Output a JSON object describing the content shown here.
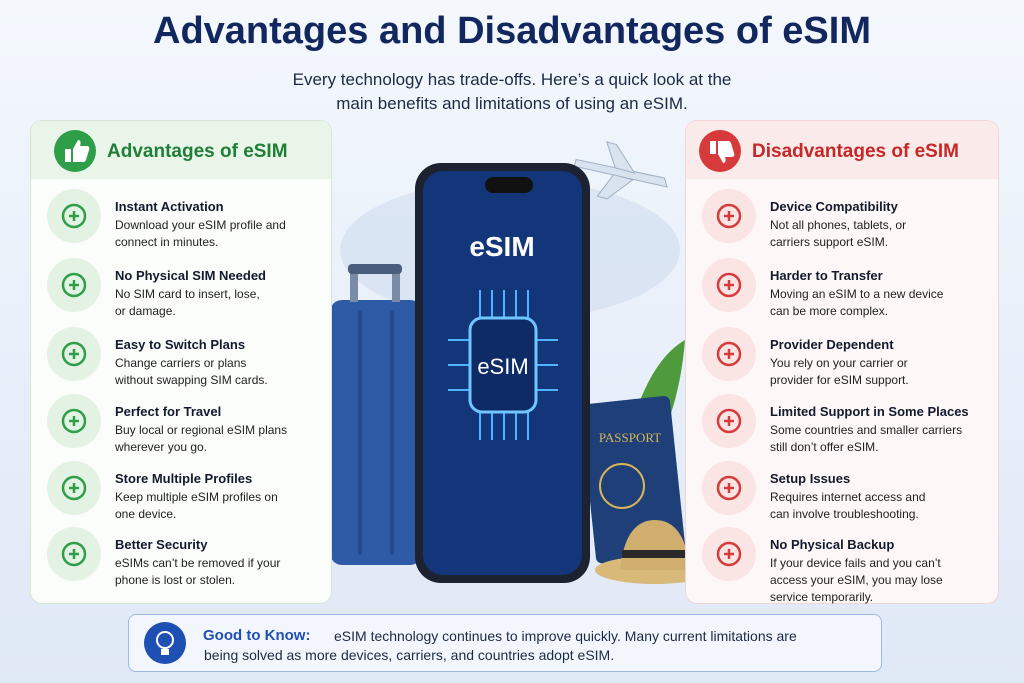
{
  "header": {
    "title": "Advantages and Disadvantages of eSIM",
    "subtitle_lines": [
      "Every technology has trade-offs. Here’s a quick look at the",
      "main benefits and limitations of using an eSIM."
    ]
  },
  "advantages": {
    "heading": "Advantages of eSIM",
    "items": [
      {
        "title": "Instant Activation",
        "desc": [
          "Download your eSIM profile and",
          "connect in minutes."
        ]
      },
      {
        "title": "No Physical SIM Needed",
        "desc": [
          "No SIM card to insert, lose,",
          "or damage."
        ]
      },
      {
        "title": "Easy to Switch Plans",
        "desc": [
          "Change carriers or plans",
          "without swapping SIM cards."
        ]
      },
      {
        "title": "Perfect for Travel",
        "desc": [
          "Buy local or regional eSIM plans",
          "wherever you go."
        ]
      },
      {
        "title": "Store Multiple Profiles",
        "desc": [
          "Keep multiple eSIM profiles on",
          "one device."
        ]
      },
      {
        "title": "Better Security",
        "desc": [
          "eSIMs can’t be removed if your",
          "phone is lost or stolen."
        ]
      }
    ]
  },
  "disadvantages": {
    "heading": "Disadvantages of eSIM",
    "items": [
      {
        "title": "Device Compatibility",
        "desc": [
          "Not all phones, tablets, or",
          "carriers support eSIM."
        ]
      },
      {
        "title": "Harder to Transfer",
        "desc": [
          "Moving an eSIM to a new device",
          "can be more complex."
        ]
      },
      {
        "title": "Provider Dependent",
        "desc": [
          "You rely on your carrier or",
          "provider for eSIM support."
        ]
      },
      {
        "title": "Limited Support in Some Places",
        "desc": [
          "Some countries and smaller carriers",
          "still don’t offer eSIM."
        ]
      },
      {
        "title": "Setup Issues",
        "desc": [
          "Requires internet access and",
          "can involve troubleshooting."
        ]
      },
      {
        "title": "No Physical Backup",
        "desc": [
          "If your device fails and you can’t",
          "access your eSIM, you may lose",
          "service temporarily."
        ]
      }
    ]
  },
  "illustration": {
    "screen_title": "eSIM",
    "chip_label": "eSIM",
    "passport": "PASSPORT"
  },
  "note": {
    "label": "Good to Know:",
    "lines": [
      "eSIM technology continues to improve quickly. Many current limitations are",
      "being solved as more devices, carriers, and countries adopt eSIM."
    ]
  }
}
